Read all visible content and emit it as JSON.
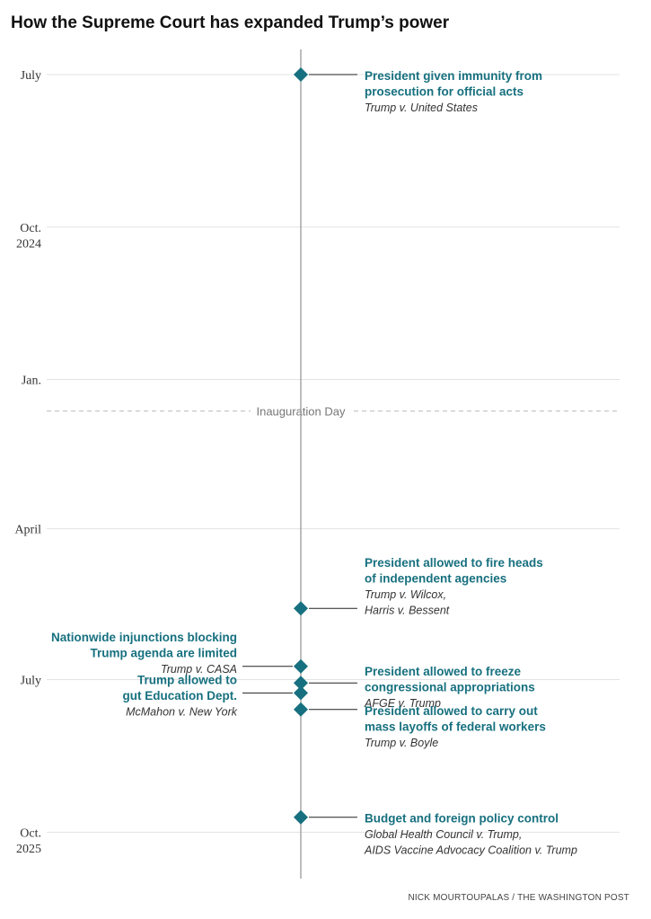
{
  "colors": {
    "accent": "#17707f",
    "grid": "#e3e3e3",
    "axis": "#999999",
    "leader": "#222222"
  },
  "chart_data": {
    "type": "timeline",
    "title": "How the Supreme Court has expanded Trump’s power",
    "credit": "NICK MOURTOUPALAS / THE WASHINGTON POST",
    "time_axis": {
      "unit": "days since 2024-07-01",
      "range": [
        0,
        485
      ],
      "ticks": [
        {
          "day": 0,
          "lines": [
            "July"
          ]
        },
        {
          "day": 92,
          "lines": [
            "Oct.",
            "2024"
          ]
        },
        {
          "day": 184,
          "lines": [
            "Jan."
          ]
        },
        {
          "day": 274,
          "lines": [
            "April"
          ]
        },
        {
          "day": 365,
          "lines": [
            "July"
          ]
        },
        {
          "day": 457,
          "lines": [
            "Oct.",
            "2025"
          ]
        }
      ]
    },
    "annotations": [
      {
        "day": 203,
        "label": "Inauguration Day"
      }
    ],
    "events": [
      {
        "day": 0,
        "side": "right",
        "title": [
          "President given immunity from",
          "prosecution for official acts"
        ],
        "cases": [
          "Trump v. United States"
        ]
      },
      {
        "day": 322,
        "side": "right",
        "title": [
          "President allowed to fire heads",
          "of independent agencies"
        ],
        "cases": [
          "Trump v. Wilcox,",
          "Harris v. Bessent"
        ]
      },
      {
        "day": 357,
        "side": "left",
        "title": [
          "Nationwide injunctions blocking",
          "Trump agenda are limited"
        ],
        "cases": [
          "Trump v. CASA"
        ]
      },
      {
        "day": 367,
        "side": "right",
        "title": [
          "President allowed to freeze",
          "congressional appropriations"
        ],
        "cases": [
          "AFGE v. Trump"
        ]
      },
      {
        "day": 373,
        "side": "left",
        "title": [
          "Trump allowed to",
          "gut Education Dept."
        ],
        "cases": [
          "McMahon v. New York"
        ]
      },
      {
        "day": 383,
        "side": "right",
        "title": [
          "President allowed to carry out",
          "mass layoffs of federal workers"
        ],
        "cases": [
          "Trump v. Boyle"
        ]
      },
      {
        "day": 448,
        "side": "right",
        "title": [
          "Budget and foreign policy control"
        ],
        "cases": [
          "Global Health Council v. Trump,",
          "AIDS Vaccine Advocacy Coalition v. Trump"
        ]
      }
    ]
  }
}
